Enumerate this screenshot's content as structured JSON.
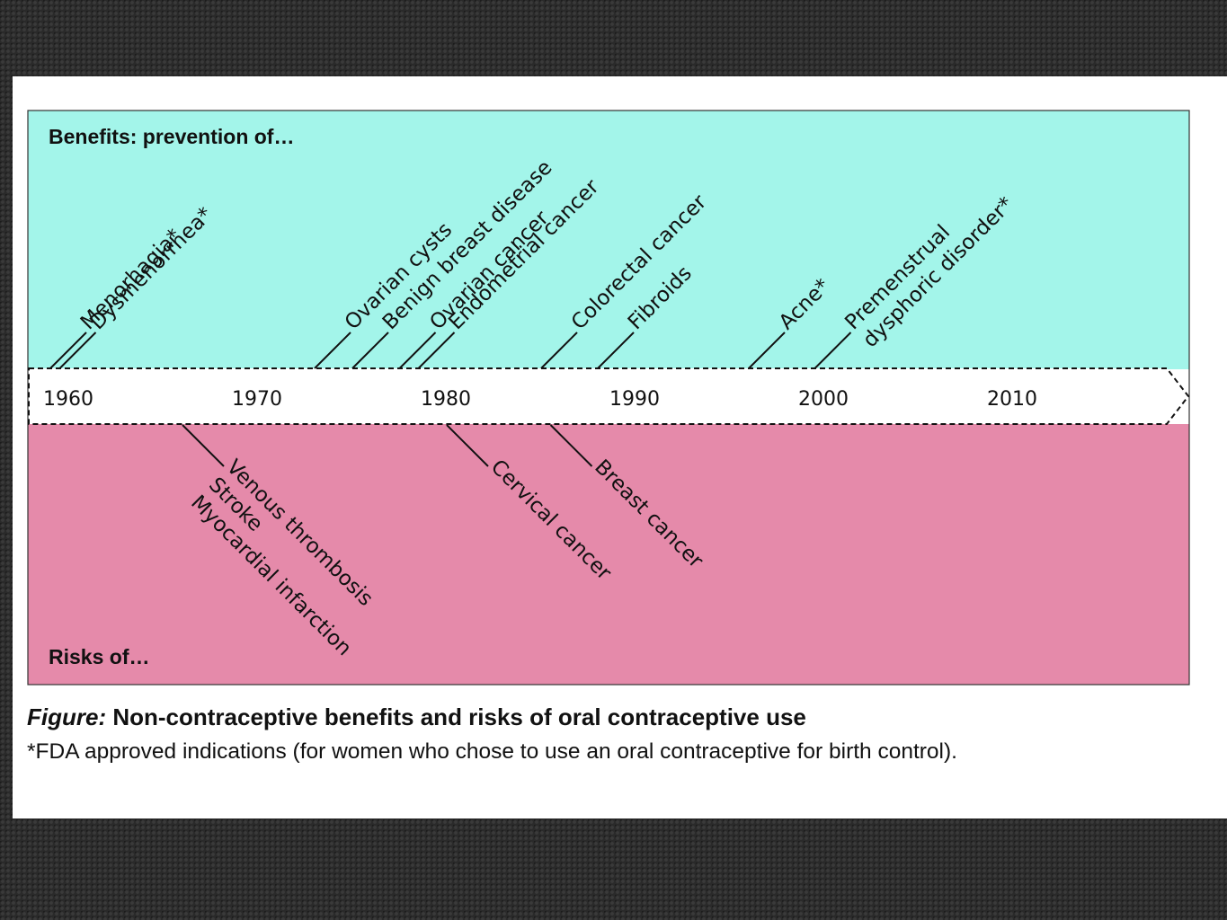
{
  "benefits": {
    "title": "Benefits: prevention of…",
    "items": [
      {
        "label": "Menorhagia*",
        "year": 1960
      },
      {
        "label": "Dysmenorrhea*",
        "year": 1960.5
      },
      {
        "label": "Ovarian cysts",
        "year": 1974
      },
      {
        "label": "Benign breast disease",
        "year": 1976
      },
      {
        "label": "Ovarian cancer",
        "year": 1978.5
      },
      {
        "label": "Endometrial cancer",
        "year": 1979.5
      },
      {
        "label": "Colorectal cancer",
        "year": 1986
      },
      {
        "label": "Fibroids",
        "year": 1989
      },
      {
        "label": "Acne*",
        "year": 1997
      },
      {
        "label": "Premenstrual\ndysphoric disorder*",
        "year": 2000.5
      }
    ]
  },
  "risks": {
    "title": "Risks of…",
    "items": [
      {
        "label": "Venous thrombosis\nStroke\nMyocardial infarction",
        "year": 1967
      },
      {
        "label": "Cervical cancer",
        "year": 1981
      },
      {
        "label": "Breast cancer",
        "year": 1986.5
      }
    ]
  },
  "timeline": {
    "years": [
      "1960",
      "1970",
      "1980",
      "1990",
      "2000",
      "2010"
    ]
  },
  "caption": {
    "prefix": "Figure:",
    "title": " Non-contraceptive benefits and risks of oral contraceptive use",
    "note": "*FDA approved indications (for women who chose to use an oral contraceptive for birth control)."
  },
  "colors": {
    "benefits_bg": "#a3f5ea",
    "risks_bg": "#e58aaa",
    "timeline_bg": "#ffffff",
    "border": "#333333"
  }
}
